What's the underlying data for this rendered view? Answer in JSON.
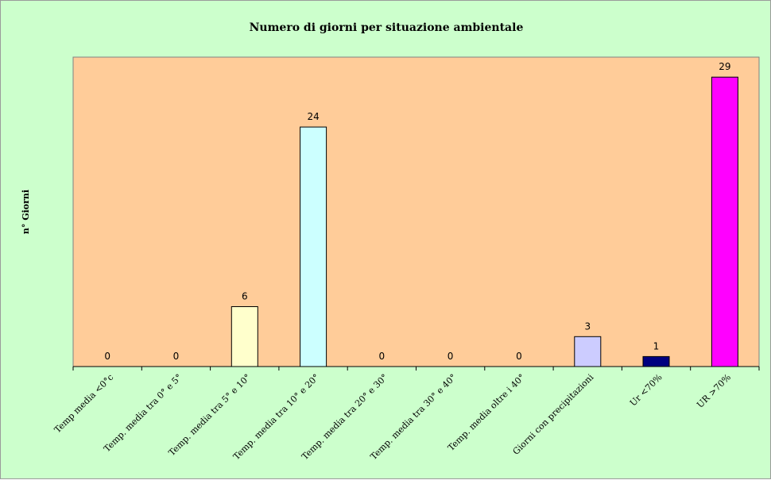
{
  "chart_data": {
    "type": "bar",
    "title": "Numero di giorni per situazione ambientale",
    "xlabel": "",
    "ylabel": "n° Giorni",
    "ylim": [
      0,
      31
    ],
    "grid": false,
    "legend": "none",
    "plot_background": "#ffcc99",
    "chart_background": "#ccffcc",
    "categories": [
      "Temp media <0°c",
      "Temp. media tra 0° e 5°",
      "Temp. media tra 5° e 10°",
      "Temp. media tra 10° e 20°",
      "Temp. media tra 20° e 30°",
      "Temp. media tra 30° e 40°",
      "Temp. media oltre i 40°",
      "Giorni con precipitazioni",
      "Ur  <70%",
      "UR >70%"
    ],
    "values": [
      0,
      0,
      6,
      24,
      0,
      0,
      0,
      3,
      1,
      29
    ],
    "value_labels": [
      "0",
      "0",
      "6",
      "24",
      "0",
      "0",
      "0",
      "3",
      "1",
      "29"
    ],
    "bar_colors": [
      "#ccffff",
      "#ccffff",
      "#ffffcc",
      "#ccffff",
      "#ccffff",
      "#ccffff",
      "#ccffff",
      "#ccccff",
      "#000080",
      "#ff00ff"
    ]
  }
}
